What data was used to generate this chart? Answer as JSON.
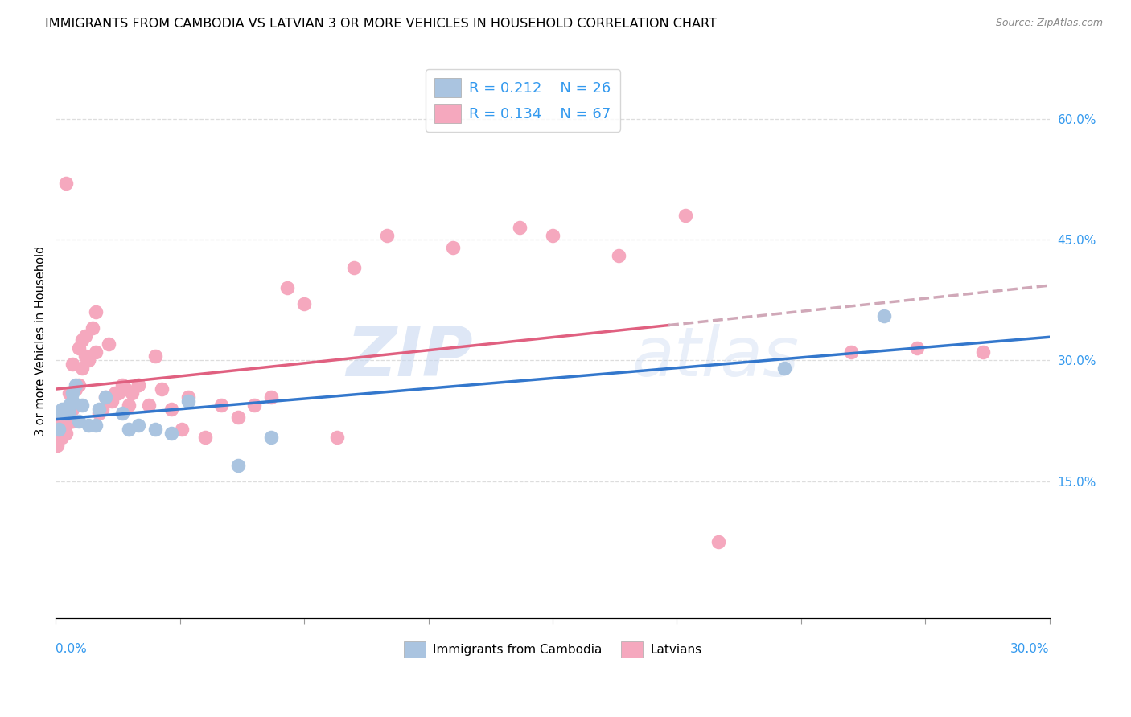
{
  "title": "IMMIGRANTS FROM CAMBODIA VS LATVIAN 3 OR MORE VEHICLES IN HOUSEHOLD CORRELATION CHART",
  "source": "Source: ZipAtlas.com",
  "ylabel": "3 or more Vehicles in Household",
  "xlim": [
    0.0,
    0.3
  ],
  "ylim": [
    -0.02,
    0.67
  ],
  "yticks_right": [
    0.15,
    0.3,
    0.45,
    0.6
  ],
  "yticklabels_right": [
    "15.0%",
    "30.0%",
    "45.0%",
    "60.0%"
  ],
  "xtick_vals": [
    0.0,
    0.0375,
    0.075,
    0.1125,
    0.15,
    0.1875,
    0.225,
    0.2625,
    0.3
  ],
  "blue_color": "#aac4e0",
  "pink_color": "#f5a8be",
  "blue_line_color": "#3377cc",
  "pink_line_color": "#e06080",
  "dashed_color": "#d0a8b8",
  "title_fontsize": 11.5,
  "tick_fontsize": 11,
  "watermark_color": "#c8d8f0",
  "blue_scatter_x": [
    0.001,
    0.002,
    0.002,
    0.003,
    0.003,
    0.004,
    0.004,
    0.005,
    0.005,
    0.006,
    0.007,
    0.008,
    0.01,
    0.012,
    0.013,
    0.015,
    0.02,
    0.022,
    0.025,
    0.03,
    0.035,
    0.04,
    0.055,
    0.065,
    0.22,
    0.25
  ],
  "blue_scatter_y": [
    0.215,
    0.24,
    0.235,
    0.235,
    0.24,
    0.245,
    0.235,
    0.26,
    0.25,
    0.27,
    0.225,
    0.245,
    0.22,
    0.22,
    0.24,
    0.255,
    0.235,
    0.215,
    0.22,
    0.215,
    0.21,
    0.25,
    0.17,
    0.205,
    0.29,
    0.355
  ],
  "pink_scatter_x": [
    0.0003,
    0.0005,
    0.001,
    0.001,
    0.0015,
    0.002,
    0.002,
    0.003,
    0.003,
    0.003,
    0.003,
    0.004,
    0.004,
    0.004,
    0.005,
    0.005,
    0.005,
    0.006,
    0.006,
    0.007,
    0.007,
    0.008,
    0.008,
    0.009,
    0.009,
    0.01,
    0.011,
    0.012,
    0.012,
    0.013,
    0.014,
    0.015,
    0.016,
    0.017,
    0.018,
    0.019,
    0.02,
    0.021,
    0.022,
    0.023,
    0.025,
    0.025,
    0.028,
    0.03,
    0.032,
    0.035,
    0.038,
    0.04,
    0.045,
    0.05,
    0.055,
    0.06,
    0.065,
    0.07,
    0.075,
    0.085,
    0.09,
    0.1,
    0.12,
    0.14,
    0.15,
    0.17,
    0.19,
    0.2,
    0.24,
    0.26,
    0.28
  ],
  "pink_scatter_y": [
    0.195,
    0.195,
    0.215,
    0.225,
    0.205,
    0.205,
    0.235,
    0.21,
    0.22,
    0.24,
    0.52,
    0.225,
    0.24,
    0.26,
    0.225,
    0.24,
    0.295,
    0.245,
    0.265,
    0.27,
    0.315,
    0.29,
    0.325,
    0.305,
    0.33,
    0.3,
    0.34,
    0.31,
    0.36,
    0.235,
    0.24,
    0.255,
    0.32,
    0.25,
    0.26,
    0.26,
    0.27,
    0.265,
    0.245,
    0.26,
    0.27,
    0.27,
    0.245,
    0.305,
    0.265,
    0.24,
    0.215,
    0.255,
    0.205,
    0.245,
    0.23,
    0.245,
    0.255,
    0.39,
    0.37,
    0.205,
    0.415,
    0.455,
    0.44,
    0.465,
    0.455,
    0.43,
    0.48,
    0.075,
    0.31,
    0.315,
    0.31
  ]
}
